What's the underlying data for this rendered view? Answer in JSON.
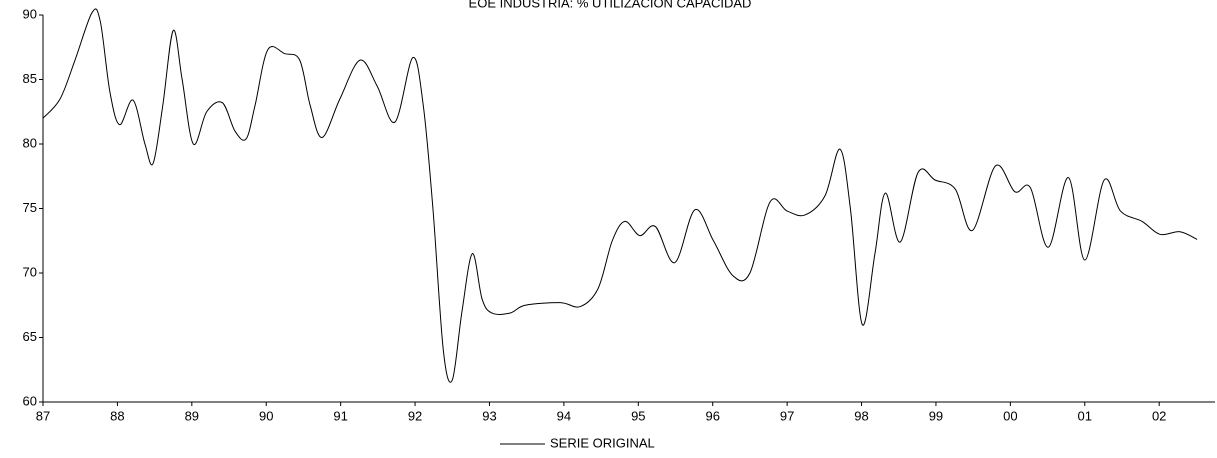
{
  "chart_data": {
    "type": "line",
    "title": "EOE INDUSTRIA: % UTILIZACIÓN CAPACIDAD",
    "x": [
      1987.0,
      1987.23,
      1987.43,
      1987.66,
      1987.77,
      1987.9,
      1988.03,
      1988.21,
      1988.37,
      1988.48,
      1988.61,
      1988.75,
      1988.87,
      1989.02,
      1989.2,
      1989.41,
      1989.58,
      1989.73,
      1989.85,
      1990.02,
      1990.25,
      1990.45,
      1990.59,
      1990.75,
      1990.99,
      1991.26,
      1991.49,
      1991.73,
      1991.97,
      1992.11,
      1992.24,
      1992.38,
      1992.5,
      1992.63,
      1992.77,
      1992.9,
      1993.03,
      1993.28,
      1993.48,
      1993.95,
      1994.22,
      1994.46,
      1994.65,
      1994.82,
      1995.02,
      1995.23,
      1995.49,
      1995.76,
      1996.01,
      1996.27,
      1996.5,
      1996.77,
      1997.0,
      1997.24,
      1997.51,
      1997.71,
      1997.85,
      1998.01,
      1998.18,
      1998.32,
      1998.52,
      1998.76,
      1998.99,
      1999.26,
      1999.49,
      1999.8,
      2000.06,
      2000.27,
      2000.51,
      2000.78,
      2001.0,
      2001.26,
      2001.48,
      2001.77,
      2002.01,
      2002.28,
      2002.51
    ],
    "series": [
      {
        "name": "SERIE ORIGINAL",
        "color": "#000000",
        "values": [
          82,
          83.5,
          86.5,
          90.2,
          89.5,
          84,
          81.5,
          83.4,
          80,
          78.5,
          83,
          88.8,
          85,
          80,
          82.5,
          83.2,
          81,
          80.4,
          83,
          87.3,
          87,
          86.5,
          83,
          80.5,
          83.5,
          86.5,
          84.5,
          81.7,
          86.7,
          83,
          75,
          64,
          61.7,
          67,
          71.5,
          68,
          66.9,
          66.9,
          67.5,
          67.7,
          67.4,
          68.8,
          72.5,
          74,
          72.9,
          73.6,
          70.8,
          74.9,
          72.5,
          69.8,
          70,
          75.5,
          74.8,
          74.5,
          76,
          79.6,
          75,
          66,
          71.5,
          76.2,
          72.4,
          77.8,
          77.2,
          76.5,
          73.3,
          78.3,
          76.3,
          76.6,
          72,
          77.4,
          71,
          77.2,
          74.8,
          74,
          73,
          73.2,
          72.6
        ]
      }
    ],
    "xlim": [
      1987,
      2002.75
    ],
    "xticks": [
      {
        "value": 1987,
        "label": "87"
      },
      {
        "value": 1988,
        "label": "88"
      },
      {
        "value": 1989,
        "label": "89"
      },
      {
        "value": 1990,
        "label": "90"
      },
      {
        "value": 1991,
        "label": "91"
      },
      {
        "value": 1992,
        "label": "92"
      },
      {
        "value": 1993,
        "label": "93"
      },
      {
        "value": 1994,
        "label": "94"
      },
      {
        "value": 1995,
        "label": "95"
      },
      {
        "value": 1996,
        "label": "96"
      },
      {
        "value": 1997,
        "label": "97"
      },
      {
        "value": 1998,
        "label": "98"
      },
      {
        "value": 1999,
        "label": "99"
      },
      {
        "value": 2000,
        "label": "00"
      },
      {
        "value": 2001,
        "label": "01"
      },
      {
        "value": 2002,
        "label": "02"
      }
    ],
    "ylim": [
      60,
      90
    ],
    "yticks": [
      60,
      65,
      70,
      75,
      80,
      85,
      90
    ]
  }
}
